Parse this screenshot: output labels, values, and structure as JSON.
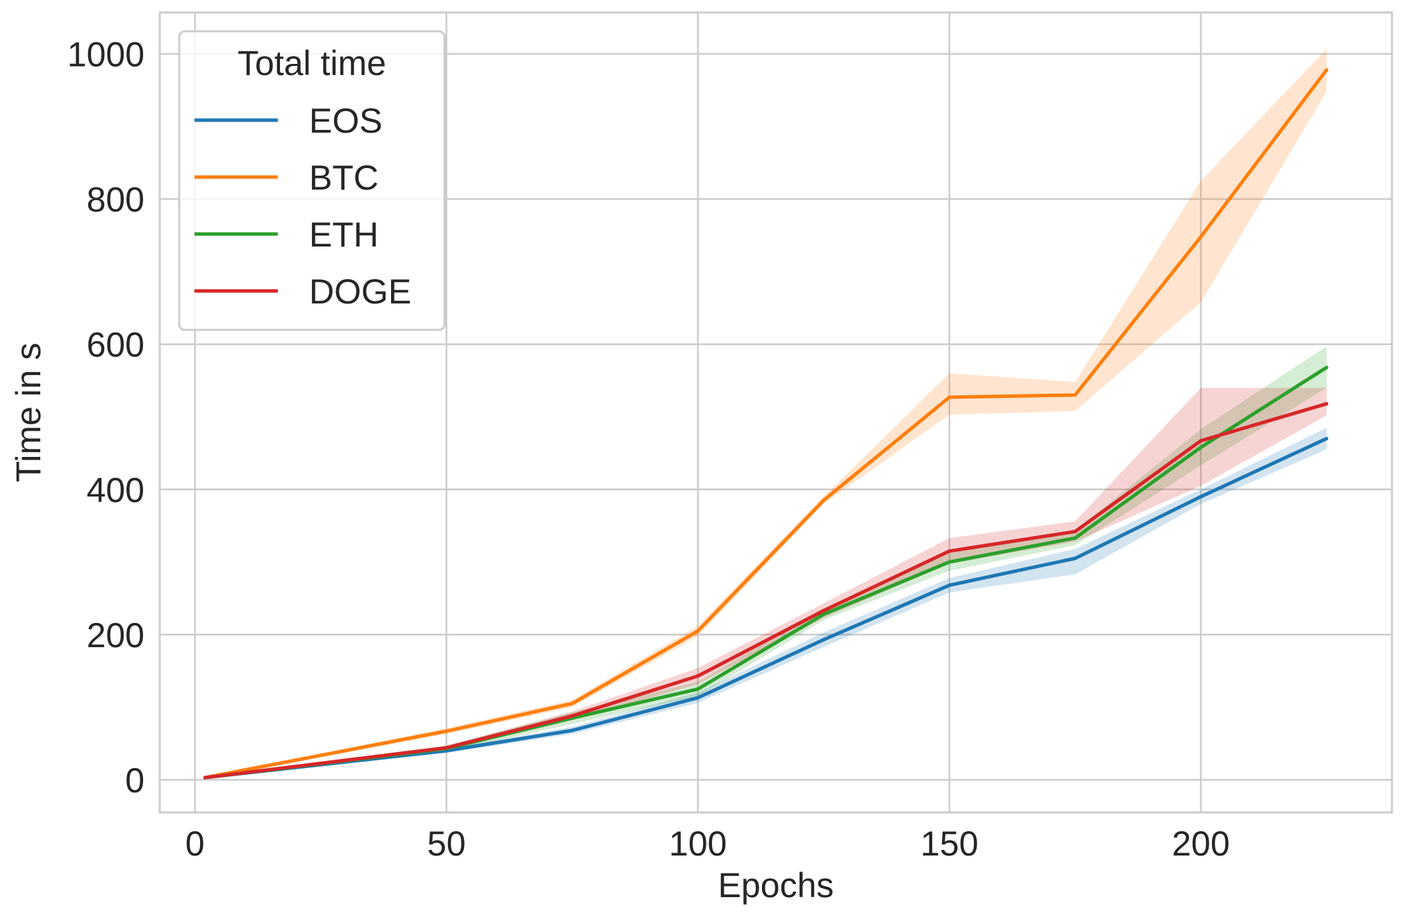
{
  "chart_data": {
    "type": "line",
    "title": "",
    "xlabel": "Epochs",
    "ylabel": "Time in s",
    "xlim": [
      -7,
      238
    ],
    "ylim": [
      -45,
      1057
    ],
    "xticks": [
      0,
      50,
      100,
      150,
      200
    ],
    "yticks": [
      0,
      200,
      400,
      600,
      800,
      1000
    ],
    "x_tick_labels": [
      "0",
      "50",
      "100",
      "150",
      "200"
    ],
    "y_tick_labels": [
      "0",
      "200",
      "400",
      "600",
      "800",
      "1000"
    ],
    "grid": true,
    "legend": {
      "title": "Total time",
      "position": "top-left"
    },
    "x": [
      2,
      50,
      75,
      100,
      125,
      150,
      175,
      200,
      225
    ],
    "series": [
      {
        "name": "EOS",
        "color": "#1f77b4",
        "values": [
          3,
          40,
          68,
          113,
          193,
          268,
          305,
          390,
          470
        ],
        "lower": [
          2,
          37,
          63,
          106,
          183,
          258,
          283,
          380,
          455
        ],
        "upper": [
          4,
          43,
          73,
          120,
          203,
          278,
          318,
          400,
          485
        ]
      },
      {
        "name": "BTC",
        "color": "#ff7f0e",
        "values": [
          3,
          67,
          105,
          205,
          385,
          527,
          530,
          748,
          978
        ],
        "lower": [
          2,
          63,
          100,
          198,
          380,
          503,
          508,
          658,
          948
        ],
        "upper": [
          4,
          71,
          110,
          212,
          390,
          560,
          548,
          825,
          1007
        ]
      },
      {
        "name": "ETH",
        "color": "#2ca02c",
        "values": [
          3,
          43,
          85,
          125,
          228,
          300,
          333,
          458,
          568
        ],
        "lower": [
          2,
          39,
          77,
          115,
          220,
          288,
          323,
          433,
          540
        ],
        "upper": [
          4,
          47,
          93,
          135,
          236,
          312,
          343,
          483,
          597
        ]
      },
      {
        "name": "DOGE",
        "color": "#d62728",
        "values": [
          3,
          44,
          88,
          143,
          233,
          315,
          342,
          467,
          518
        ],
        "lower": [
          2,
          41,
          82,
          132,
          223,
          298,
          328,
          405,
          502
        ],
        "upper": [
          4,
          47,
          94,
          154,
          243,
          333,
          356,
          540,
          540
        ]
      }
    ]
  }
}
